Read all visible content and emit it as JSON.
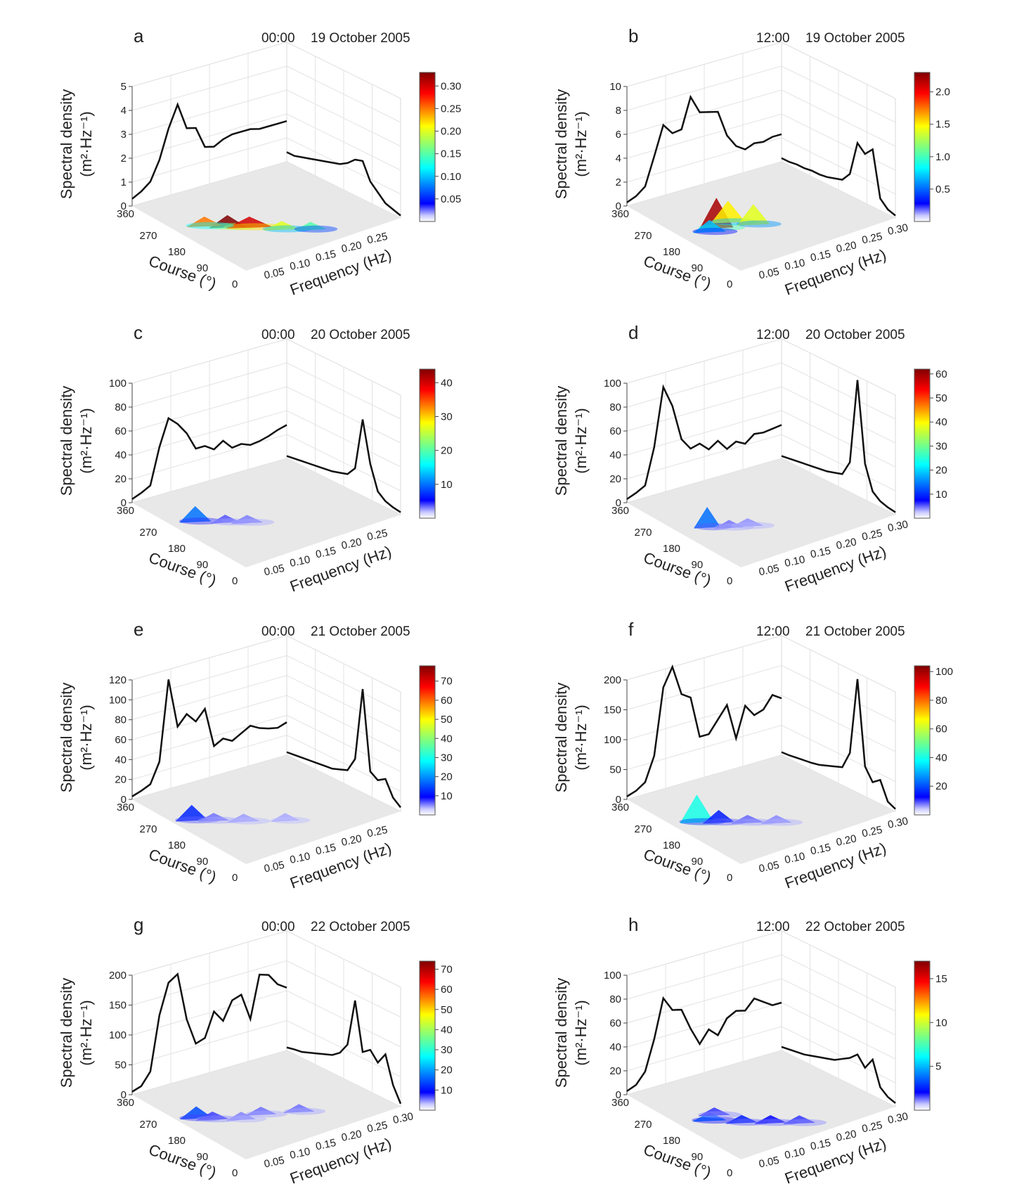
{
  "figure": {
    "ylabel_line1": "Spectral density",
    "ylabel_line2": "(m²·Hz⁻¹)",
    "xlabel": "Frequency (Hz)",
    "course_label": "Course (°)",
    "course_ticks": [
      "360",
      "270",
      "180",
      "90",
      "0"
    ]
  },
  "chart_data": [
    {
      "type": "surface3d",
      "panel": "a",
      "time": "00:00",
      "date": "19 October 2005",
      "z_ticks": [
        "0",
        "1",
        "2",
        "3",
        "4",
        "5"
      ],
      "z_max": 5,
      "freq_ticks": [
        "0.05",
        "0.10",
        "0.15",
        "0.20",
        "0.25"
      ],
      "colorbar_ticks": [
        "0.05",
        "0.10",
        "0.15",
        "0.20",
        "0.25",
        "0.30"
      ],
      "colorbar_max": 0.33,
      "wall_left": [
        0.3,
        0.5,
        0.8,
        1.6,
        2.8,
        3.7,
        2.6,
        2.5,
        1.6,
        1.5,
        1.7,
        1.8,
        1.8,
        1.8,
        1.7,
        1.7,
        1.7,
        1.7
      ],
      "wall_right": [
        0.4,
        0.4,
        0.5,
        0.6,
        0.7,
        0.8,
        0.9,
        1.0,
        1.2,
        1.5,
        1.6,
        0.9,
        0.6,
        0.3,
        0.2,
        0.1
      ],
      "blobs": [
        {
          "f": 0.09,
          "c": 0.38,
          "h": 0.35,
          "s": 0.18
        },
        {
          "f": 0.12,
          "c": 0.42,
          "h": 0.3,
          "s": 0.22
        },
        {
          "f": 0.06,
          "c": 0.33,
          "h": 0.25,
          "s": 0.12
        },
        {
          "f": 0.16,
          "c": 0.5,
          "h": 0.2,
          "s": 0.1
        },
        {
          "f": 0.2,
          "c": 0.55,
          "h": 0.15,
          "s": 0.06
        }
      ]
    },
    {
      "type": "surface3d",
      "panel": "b",
      "time": "12:00",
      "date": "19 October 2005",
      "z_ticks": [
        "0",
        "2",
        "4",
        "6",
        "8",
        "10"
      ],
      "z_max": 10,
      "freq_ticks": [
        "0.05",
        "0.10",
        "0.15",
        "0.20",
        "0.25",
        "0.30"
      ],
      "colorbar_ticks": [
        "0.5",
        "1.0",
        "1.5",
        "2.0"
      ],
      "colorbar_max": 2.3,
      "wall_left": [
        0.3,
        0.6,
        1.2,
        3.5,
        5.9,
        5.0,
        5.1,
        7.6,
        6.1,
        5.9,
        5.7,
        3.5,
        2.4,
        1.9,
        2.2,
        2.1,
        2.3,
        2.3
      ],
      "wall_right": [
        0.3,
        0.3,
        0.4,
        0.4,
        0.5,
        0.5,
        0.6,
        0.8,
        1.0,
        1.8,
        4.7,
        4.1,
        4.8,
        1.0,
        0.4,
        0.2
      ],
      "blobs": [
        {
          "f": 0.08,
          "c": 0.38,
          "h": 2.2,
          "s": 1.0
        },
        {
          "f": 0.11,
          "c": 0.33,
          "h": 1.5,
          "s": 0.7
        },
        {
          "f": 0.14,
          "c": 0.4,
          "h": 1.4,
          "s": 0.6
        },
        {
          "f": 0.06,
          "c": 0.42,
          "h": 0.7,
          "s": 0.3
        }
      ]
    },
    {
      "type": "surface3d",
      "panel": "c",
      "time": "00:00",
      "date": "20 October 2005",
      "z_ticks": [
        "0",
        "20",
        "40",
        "60",
        "80",
        "100"
      ],
      "z_max": 100,
      "freq_ticks": [
        "0.05",
        "0.10",
        "0.15",
        "0.20",
        "0.25"
      ],
      "colorbar_ticks": [
        "10",
        "20",
        "30",
        "40"
      ],
      "colorbar_max": 44,
      "wall_left": [
        3,
        6,
        10,
        40,
        62,
        55,
        45,
        30,
        30,
        25,
        30,
        22,
        23,
        20,
        21,
        23,
        26,
        28
      ],
      "wall_right": [
        2,
        3,
        4,
        5,
        6,
        7,
        8,
        10,
        12,
        20,
        64,
        30,
        10,
        5,
        3,
        2
      ],
      "blobs": [
        {
          "f": 0.05,
          "c": 0.3,
          "h": 10,
          "s": 4
        },
        {
          "f": 0.09,
          "c": 0.36,
          "h": 3,
          "s": 1
        },
        {
          "f": 0.12,
          "c": 0.4,
          "h": 2,
          "s": 0.8
        }
      ]
    },
    {
      "type": "surface3d",
      "panel": "d",
      "time": "12:00",
      "date": "20 October 2005",
      "z_ticks": [
        "0",
        "20",
        "40",
        "60",
        "80",
        "100"
      ],
      "z_max": 100,
      "freq_ticks": [
        "0.05",
        "0.10",
        "0.15",
        "0.20",
        "0.25",
        "0.30"
      ],
      "colorbar_ticks": [
        "10",
        "20",
        "30",
        "40",
        "50",
        "60"
      ],
      "colorbar_max": 62,
      "wall_left": [
        3,
        6,
        10,
        40,
        88,
        70,
        40,
        30,
        32,
        25,
        30,
        21,
        25,
        21,
        27,
        26,
        27,
        28
      ],
      "wall_right": [
        2,
        3,
        4,
        5,
        6,
        7,
        8,
        10,
        12,
        25,
        97,
        30,
        10,
        5,
        3,
        2
      ],
      "blobs": [
        {
          "f": 0.06,
          "c": 0.4,
          "h": 14,
          "s": 4
        },
        {
          "f": 0.09,
          "c": 0.44,
          "h": 3,
          "s": 1
        },
        {
          "f": 0.12,
          "c": 0.45,
          "h": 2,
          "s": 0.8
        }
      ]
    },
    {
      "type": "surface3d",
      "panel": "e",
      "time": "00:00",
      "date": "21 October 2005",
      "z_ticks": [
        "0",
        "20",
        "40",
        "60",
        "80",
        "100",
        "120"
      ],
      "z_max": 120,
      "freq_ticks": [
        "0.05",
        "0.10",
        "0.15",
        "0.20",
        "0.25"
      ],
      "colorbar_ticks": [
        "10",
        "20",
        "30",
        "40",
        "50",
        "60",
        "70"
      ],
      "colorbar_max": 78,
      "wall_left": [
        3,
        6,
        10,
        30,
        110,
        60,
        70,
        60,
        70,
        30,
        35,
        30,
        35,
        40,
        35,
        32,
        30,
        33
      ],
      "wall_right": [
        3,
        4,
        5,
        6,
        7,
        8,
        9,
        12,
        15,
        30,
        104,
        25,
        20,
        25,
        10,
        4
      ],
      "blobs": [
        {
          "f": 0.04,
          "c": 0.32,
          "h": 12,
          "s": 5
        },
        {
          "f": 0.07,
          "c": 0.36,
          "h": 4,
          "s": 1.5
        },
        {
          "f": 0.11,
          "c": 0.42,
          "h": 2,
          "s": 0.8
        },
        {
          "f": 0.17,
          "c": 0.48,
          "h": 1.5,
          "s": 0.5
        }
      ]
    },
    {
      "type": "surface3d",
      "panel": "f",
      "time": "12:00",
      "date": "21 October 2005",
      "z_ticks": [
        "0",
        "50",
        "100",
        "150",
        "200"
      ],
      "z_max": 200,
      "freq_ticks": [
        "0.05",
        "0.10",
        "0.15",
        "0.20",
        "0.25",
        "0.30"
      ],
      "colorbar_ticks": [
        "20",
        "40",
        "60",
        "80",
        "100"
      ],
      "colorbar_max": 104,
      "wall_left": [
        5,
        10,
        20,
        60,
        170,
        210,
        150,
        140,
        70,
        70,
        90,
        110,
        50,
        100,
        80,
        85,
        105,
        95
      ],
      "wall_right": [
        5,
        6,
        8,
        10,
        12,
        15,
        20,
        25,
        30,
        60,
        190,
        50,
        30,
        40,
        10,
        4
      ],
      "blobs": [
        {
          "f": 0.05,
          "c": 0.36,
          "h": 40,
          "s": 18
        },
        {
          "f": 0.08,
          "c": 0.4,
          "h": 15,
          "s": 6
        },
        {
          "f": 0.12,
          "c": 0.45,
          "h": 6,
          "s": 2.5
        },
        {
          "f": 0.16,
          "c": 0.5,
          "h": 4,
          "s": 1.5
        }
      ]
    },
    {
      "type": "surface3d",
      "panel": "g",
      "time": "00:00",
      "date": "22 October 2005",
      "z_ticks": [
        "0",
        "50",
        "100",
        "150",
        "200"
      ],
      "z_max": 200,
      "freq_ticks": [
        "0.05",
        "0.10",
        "0.15",
        "0.20",
        "0.25",
        "0.30"
      ],
      "colorbar_ticks": [
        "10",
        "20",
        "30",
        "40",
        "50",
        "60",
        "70"
      ],
      "colorbar_max": 74,
      "wall_left": [
        5,
        10,
        30,
        120,
        170,
        180,
        100,
        55,
        60,
        100,
        80,
        110,
        115,
        70,
        140,
        135,
        115,
        105
      ],
      "wall_right": [
        5,
        8,
        10,
        15,
        20,
        25,
        30,
        40,
        60,
        140,
        60,
        70,
        55,
        75,
        30,
        5
      ],
      "blobs": [
        {
          "f": 0.04,
          "c": 0.36,
          "h": 14,
          "s": 6
        },
        {
          "f": 0.06,
          "c": 0.4,
          "h": 6,
          "s": 2.5
        },
        {
          "f": 0.14,
          "c": 0.42,
          "h": 4,
          "s": 1.5
        },
        {
          "f": 0.2,
          "c": 0.45,
          "h": 4,
          "s": 1.5
        },
        {
          "f": 0.1,
          "c": 0.45,
          "h": 3,
          "s": 1
        }
      ]
    },
    {
      "type": "surface3d",
      "panel": "h",
      "time": "12:00",
      "date": "22 October 2005",
      "z_ticks": [
        "0",
        "20",
        "40",
        "60",
        "80",
        "100"
      ],
      "z_max": 100,
      "freq_ticks": [
        "0.05",
        "0.10",
        "0.15",
        "0.20",
        "0.25",
        "0.30"
      ],
      "colorbar_ticks": [
        "5",
        "10",
        "15"
      ],
      "colorbar_max": 17,
      "wall_left": [
        3,
        6,
        15,
        40,
        72,
        60,
        58,
        40,
        25,
        35,
        28,
        40,
        44,
        42,
        50,
        45,
        40,
        40
      ],
      "wall_right": [
        3,
        4,
        5,
        6,
        8,
        10,
        12,
        14,
        18,
        22,
        28,
        20,
        30,
        10,
        5,
        3
      ],
      "blobs": [
        {
          "f": 0.06,
          "c": 0.42,
          "h": 4,
          "s": 1.8
        },
        {
          "f": 0.1,
          "c": 0.5,
          "h": 2.5,
          "s": 1
        },
        {
          "f": 0.14,
          "c": 0.55,
          "h": 2,
          "s": 0.8
        },
        {
          "f": 0.18,
          "c": 0.6,
          "h": 1.5,
          "s": 0.6
        },
        {
          "f": 0.08,
          "c": 0.36,
          "h": 1.5,
          "s": 0.6
        }
      ]
    }
  ]
}
